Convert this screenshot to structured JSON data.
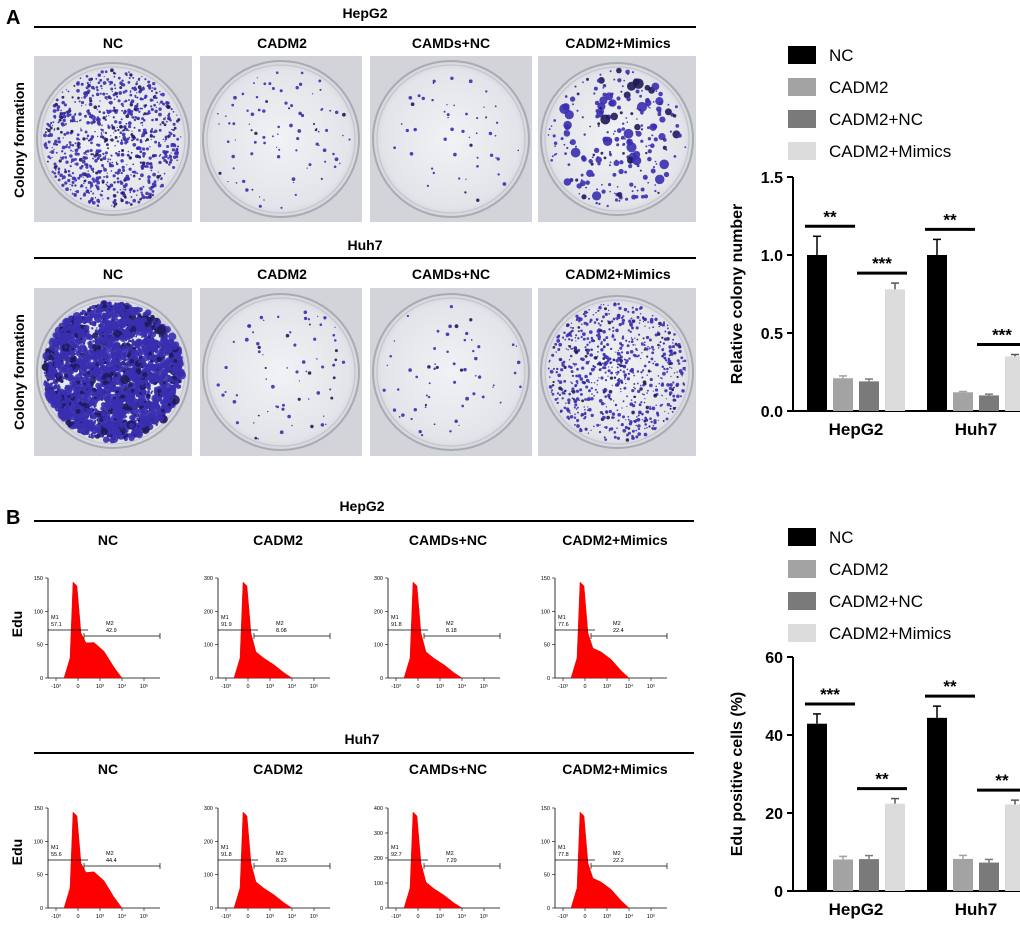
{
  "panel_a": {
    "label": "A",
    "rows": [
      {
        "cell_line": "HepG2",
        "ylabel": "Colony formation",
        "columns": [
          "NC",
          "CADM2",
          "CAMDs+NC",
          "CADM2+Mimics"
        ]
      },
      {
        "cell_line": "Huh7",
        "ylabel": "Colony formation",
        "columns": [
          "NC",
          "CADM2",
          "CAMDs+NC",
          "CADM2+Mimics"
        ]
      }
    ]
  },
  "panel_b": {
    "label": "B",
    "rows": [
      {
        "cell_line": "HepG2",
        "ylabel": "Edu",
        "columns": [
          "NC",
          "CADM2",
          "CAMDs+NC",
          "CADM2+Mimics"
        ],
        "histograms": [
          {
            "m1_label": "M1",
            "m1": "57.1",
            "m2_label": "M2",
            "m2": "42.9",
            "ymax": 150,
            "yticks": [
              "150",
              "100",
              "50",
              "0"
            ]
          },
          {
            "m1_label": "M1",
            "m1": "91.9",
            "m2_label": "M2",
            "m2": "8.08",
            "ymax": 300,
            "yticks": [
              "300",
              "200",
              "100",
              "0"
            ]
          },
          {
            "m1_label": "M1",
            "m1": "91.8",
            "m2_label": "M2",
            "m2": "8.18",
            "ymax": 300,
            "yticks": [
              "300",
              "200",
              "100",
              "0"
            ]
          },
          {
            "m1_label": "M1",
            "m1": "77.6",
            "m2_label": "M2",
            "m2": "22.4",
            "ymax": 150,
            "yticks": [
              "150",
              "100",
              "50",
              "0"
            ]
          }
        ]
      },
      {
        "cell_line": "Huh7",
        "ylabel": "Edu",
        "columns": [
          "NC",
          "CADM2",
          "CAMDs+NC",
          "CADM2+Mimics"
        ],
        "histograms": [
          {
            "m1_label": "M1",
            "m1": "55.6",
            "m2_label": "M2",
            "m2": "44.4",
            "ymax": 150,
            "yticks": [
              "150",
              "100",
              "50",
              "0"
            ]
          },
          {
            "m1_label": "M1",
            "m1": "91.8",
            "m2_label": "M2",
            "m2": "8.23",
            "ymax": 300,
            "yticks": [
              "300",
              "200",
              "100",
              "0"
            ]
          },
          {
            "m1_label": "M1",
            "m1": "92.7",
            "m2_label": "M2",
            "m2": "7.29",
            "ymax": 400,
            "yticks": [
              "400",
              "300",
              "200",
              "100",
              "0"
            ]
          },
          {
            "m1_label": "M1",
            "m1": "77.8",
            "m2_label": "M2",
            "m2": "22.2",
            "ymax": 150,
            "yticks": [
              "150",
              "100",
              "50",
              "0"
            ]
          }
        ]
      }
    ],
    "xticks": [
      "-10³",
      "0",
      "10³",
      "10⁴",
      "10⁵"
    ]
  },
  "colors": {
    "NC": "#000000",
    "CADM2": "#a3a3a3",
    "CADM2+NC": "#7a7a7a",
    "CADM2+Mimics": "#dcdcdc",
    "histogram": "#ff0000",
    "stain": "#3a2fb0"
  },
  "chart_data": [
    {
      "type": "bar",
      "ylabel": "Relative colony number",
      "xlabel": "",
      "categories": [
        "HepG2",
        "Huh7"
      ],
      "ylim": [
        0,
        1.5
      ],
      "yticks": [
        "0.0",
        "0.5",
        "1.0",
        "1.5"
      ],
      "legend_position": "top",
      "series": [
        {
          "name": "NC",
          "values": [
            1.0,
            1.0
          ],
          "errors": [
            0.12,
            0.1
          ]
        },
        {
          "name": "CADM2",
          "values": [
            0.21,
            0.12
          ],
          "errors": [
            0.015,
            0.005
          ]
        },
        {
          "name": "CADM2+NC",
          "values": [
            0.19,
            0.1
          ],
          "errors": [
            0.015,
            0.008
          ]
        },
        {
          "name": "CADM2+Mimics",
          "values": [
            0.78,
            0.35
          ],
          "errors": [
            0.04,
            0.012
          ]
        }
      ],
      "significance": [
        {
          "category": "HepG2",
          "between": [
            "NC",
            "CADM2"
          ],
          "label": "**"
        },
        {
          "category": "HepG2",
          "between": [
            "CADM2+NC",
            "CADM2+Mimics"
          ],
          "label": "***"
        },
        {
          "category": "Huh7",
          "between": [
            "NC",
            "CADM2"
          ],
          "label": "**"
        },
        {
          "category": "Huh7",
          "between": [
            "CADM2+NC",
            "CADM2+Mimics"
          ],
          "label": "***"
        }
      ]
    },
    {
      "type": "bar",
      "ylabel": "Edu positive cells (%)",
      "xlabel": "",
      "categories": [
        "HepG2",
        "Huh7"
      ],
      "ylim": [
        0,
        60
      ],
      "yticks": [
        "0",
        "20",
        "40",
        "60"
      ],
      "legend_position": "top",
      "series": [
        {
          "name": "NC",
          "values": [
            42.9,
            44.4
          ],
          "errors": [
            2.5,
            3.0
          ]
        },
        {
          "name": "CADM2",
          "values": [
            8.08,
            8.23
          ],
          "errors": [
            0.8,
            0.9
          ]
        },
        {
          "name": "CADM2+NC",
          "values": [
            8.18,
            7.29
          ],
          "errors": [
            0.9,
            0.8
          ]
        },
        {
          "name": "CADM2+Mimics",
          "values": [
            22.4,
            22.2
          ],
          "errors": [
            1.3,
            1.1
          ]
        }
      ],
      "significance": [
        {
          "category": "HepG2",
          "between": [
            "NC",
            "CADM2"
          ],
          "label": "***"
        },
        {
          "category": "HepG2",
          "between": [
            "CADM2+NC",
            "CADM2+Mimics"
          ],
          "label": "**"
        },
        {
          "category": "Huh7",
          "between": [
            "NC",
            "CADM2"
          ],
          "label": "**"
        },
        {
          "category": "Huh7",
          "between": [
            "CADM2+NC",
            "CADM2+Mimics"
          ],
          "label": "**"
        }
      ]
    }
  ]
}
